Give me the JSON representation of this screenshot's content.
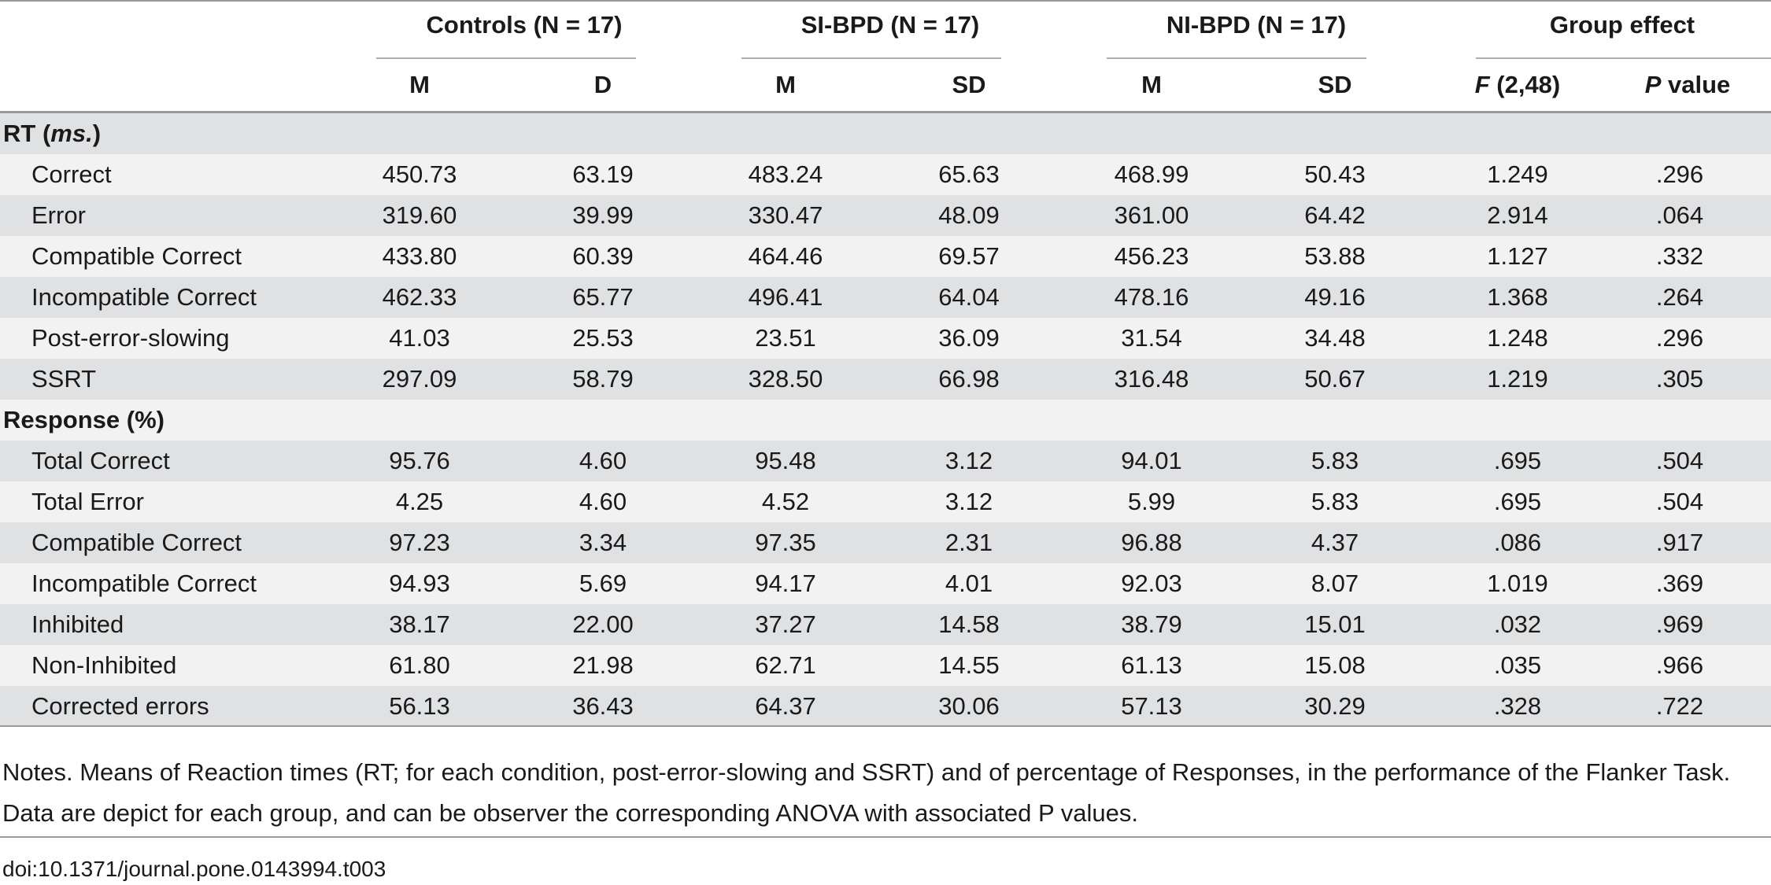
{
  "headers": {
    "groups": [
      "Controls (N = 17)",
      "SI-BPD (N = 17)",
      "NI-BPD (N = 17)",
      "Group effect"
    ],
    "sub": [
      "M",
      "D",
      "M",
      "SD",
      "M",
      "SD"
    ],
    "f_stat": {
      "symbol": "F",
      "df": " (2,48)"
    },
    "p_value": {
      "symbol": "P",
      "label": " value"
    }
  },
  "sections": [
    {
      "title": "RT",
      "title_unit": "ms.",
      "rows": [
        {
          "label": "Correct",
          "values": [
            "450.73",
            "63.19",
            "483.24",
            "65.63",
            "468.99",
            "50.43",
            "1.249",
            ".296"
          ]
        },
        {
          "label": "Error",
          "values": [
            "319.60",
            "39.99",
            "330.47",
            "48.09",
            "361.00",
            "64.42",
            "2.914",
            ".064"
          ]
        },
        {
          "label": "Compatible Correct",
          "values": [
            "433.80",
            "60.39",
            "464.46",
            "69.57",
            "456.23",
            "53.88",
            "1.127",
            ".332"
          ]
        },
        {
          "label": "Incompatible Correct",
          "values": [
            "462.33",
            "65.77",
            "496.41",
            "64.04",
            "478.16",
            "49.16",
            "1.368",
            ".264"
          ]
        },
        {
          "label": "Post-error-slowing",
          "values": [
            "41.03",
            "25.53",
            "23.51",
            "36.09",
            "31.54",
            "34.48",
            "1.248",
            ".296"
          ]
        },
        {
          "label": "SSRT",
          "values": [
            "297.09",
            "58.79",
            "328.50",
            "66.98",
            "316.48",
            "50.67",
            "1.219",
            ".305"
          ]
        }
      ]
    },
    {
      "title": "Response (%)",
      "title_unit": "",
      "rows": [
        {
          "label": "Total Correct",
          "values": [
            "95.76",
            "4.60",
            "95.48",
            "3.12",
            "94.01",
            "5.83",
            ".695",
            ".504"
          ]
        },
        {
          "label": "Total Error",
          "values": [
            "4.25",
            "4.60",
            "4.52",
            "3.12",
            "5.99",
            "5.83",
            ".695",
            ".504"
          ]
        },
        {
          "label": "Compatible Correct",
          "values": [
            "97.23",
            "3.34",
            "97.35",
            "2.31",
            "96.88",
            "4.37",
            ".086",
            ".917"
          ]
        },
        {
          "label": "Incompatible Correct",
          "values": [
            "94.93",
            "5.69",
            "94.17",
            "4.01",
            "92.03",
            "8.07",
            "1.019",
            ".369"
          ]
        },
        {
          "label": "Inhibited",
          "values": [
            "38.17",
            "22.00",
            "37.27",
            "14.58",
            "38.79",
            "15.01",
            ".032",
            ".969"
          ]
        },
        {
          "label": "Non-Inhibited",
          "values": [
            "61.80",
            "21.98",
            "62.71",
            "14.55",
            "61.13",
            "15.08",
            ".035",
            ".966"
          ]
        },
        {
          "label": "Corrected errors",
          "values": [
            "56.13",
            "36.43",
            "64.37",
            "30.06",
            "57.13",
            "30.29",
            ".328",
            ".722"
          ]
        }
      ]
    }
  ],
  "notes": "Notes. Means of Reaction times (RT; for each condition, post-error-slowing and SSRT) and of percentage of Responses, in the performance of the Flanker Task. Data are depict for each group, and can be observer the corresponding ANOVA with associated P values.",
  "doi": "doi:10.1371/journal.pone.0143994.t003",
  "colors": {
    "shade": "#e0e1e3",
    "light": "#f2f2f3",
    "rule": "#9a9a9a"
  }
}
